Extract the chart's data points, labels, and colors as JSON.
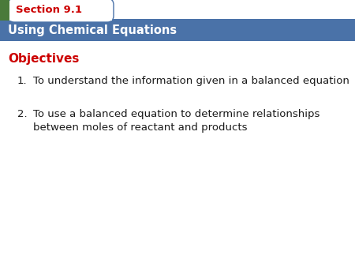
{
  "section_label": "Section 9.1",
  "title": "Using Chemical Equations",
  "objectives_label": "Objectives",
  "items": [
    "To understand the information given in a balanced equation",
    "To use a balanced equation to determine relationships\nbetween moles of reactant and products"
  ],
  "bg_color": "#ffffff",
  "header_bg_color": "#4a72a8",
  "tab_bg_color": "#ffffff",
  "tab_border_color": "#4a72a8",
  "section_text_color": "#cc0000",
  "title_text_color": "#ffffff",
  "objectives_color": "#cc0000",
  "body_text_color": "#1a1a1a",
  "green_rect_color": "#4a7a3a",
  "item_numbers": [
    "1.",
    "2."
  ]
}
